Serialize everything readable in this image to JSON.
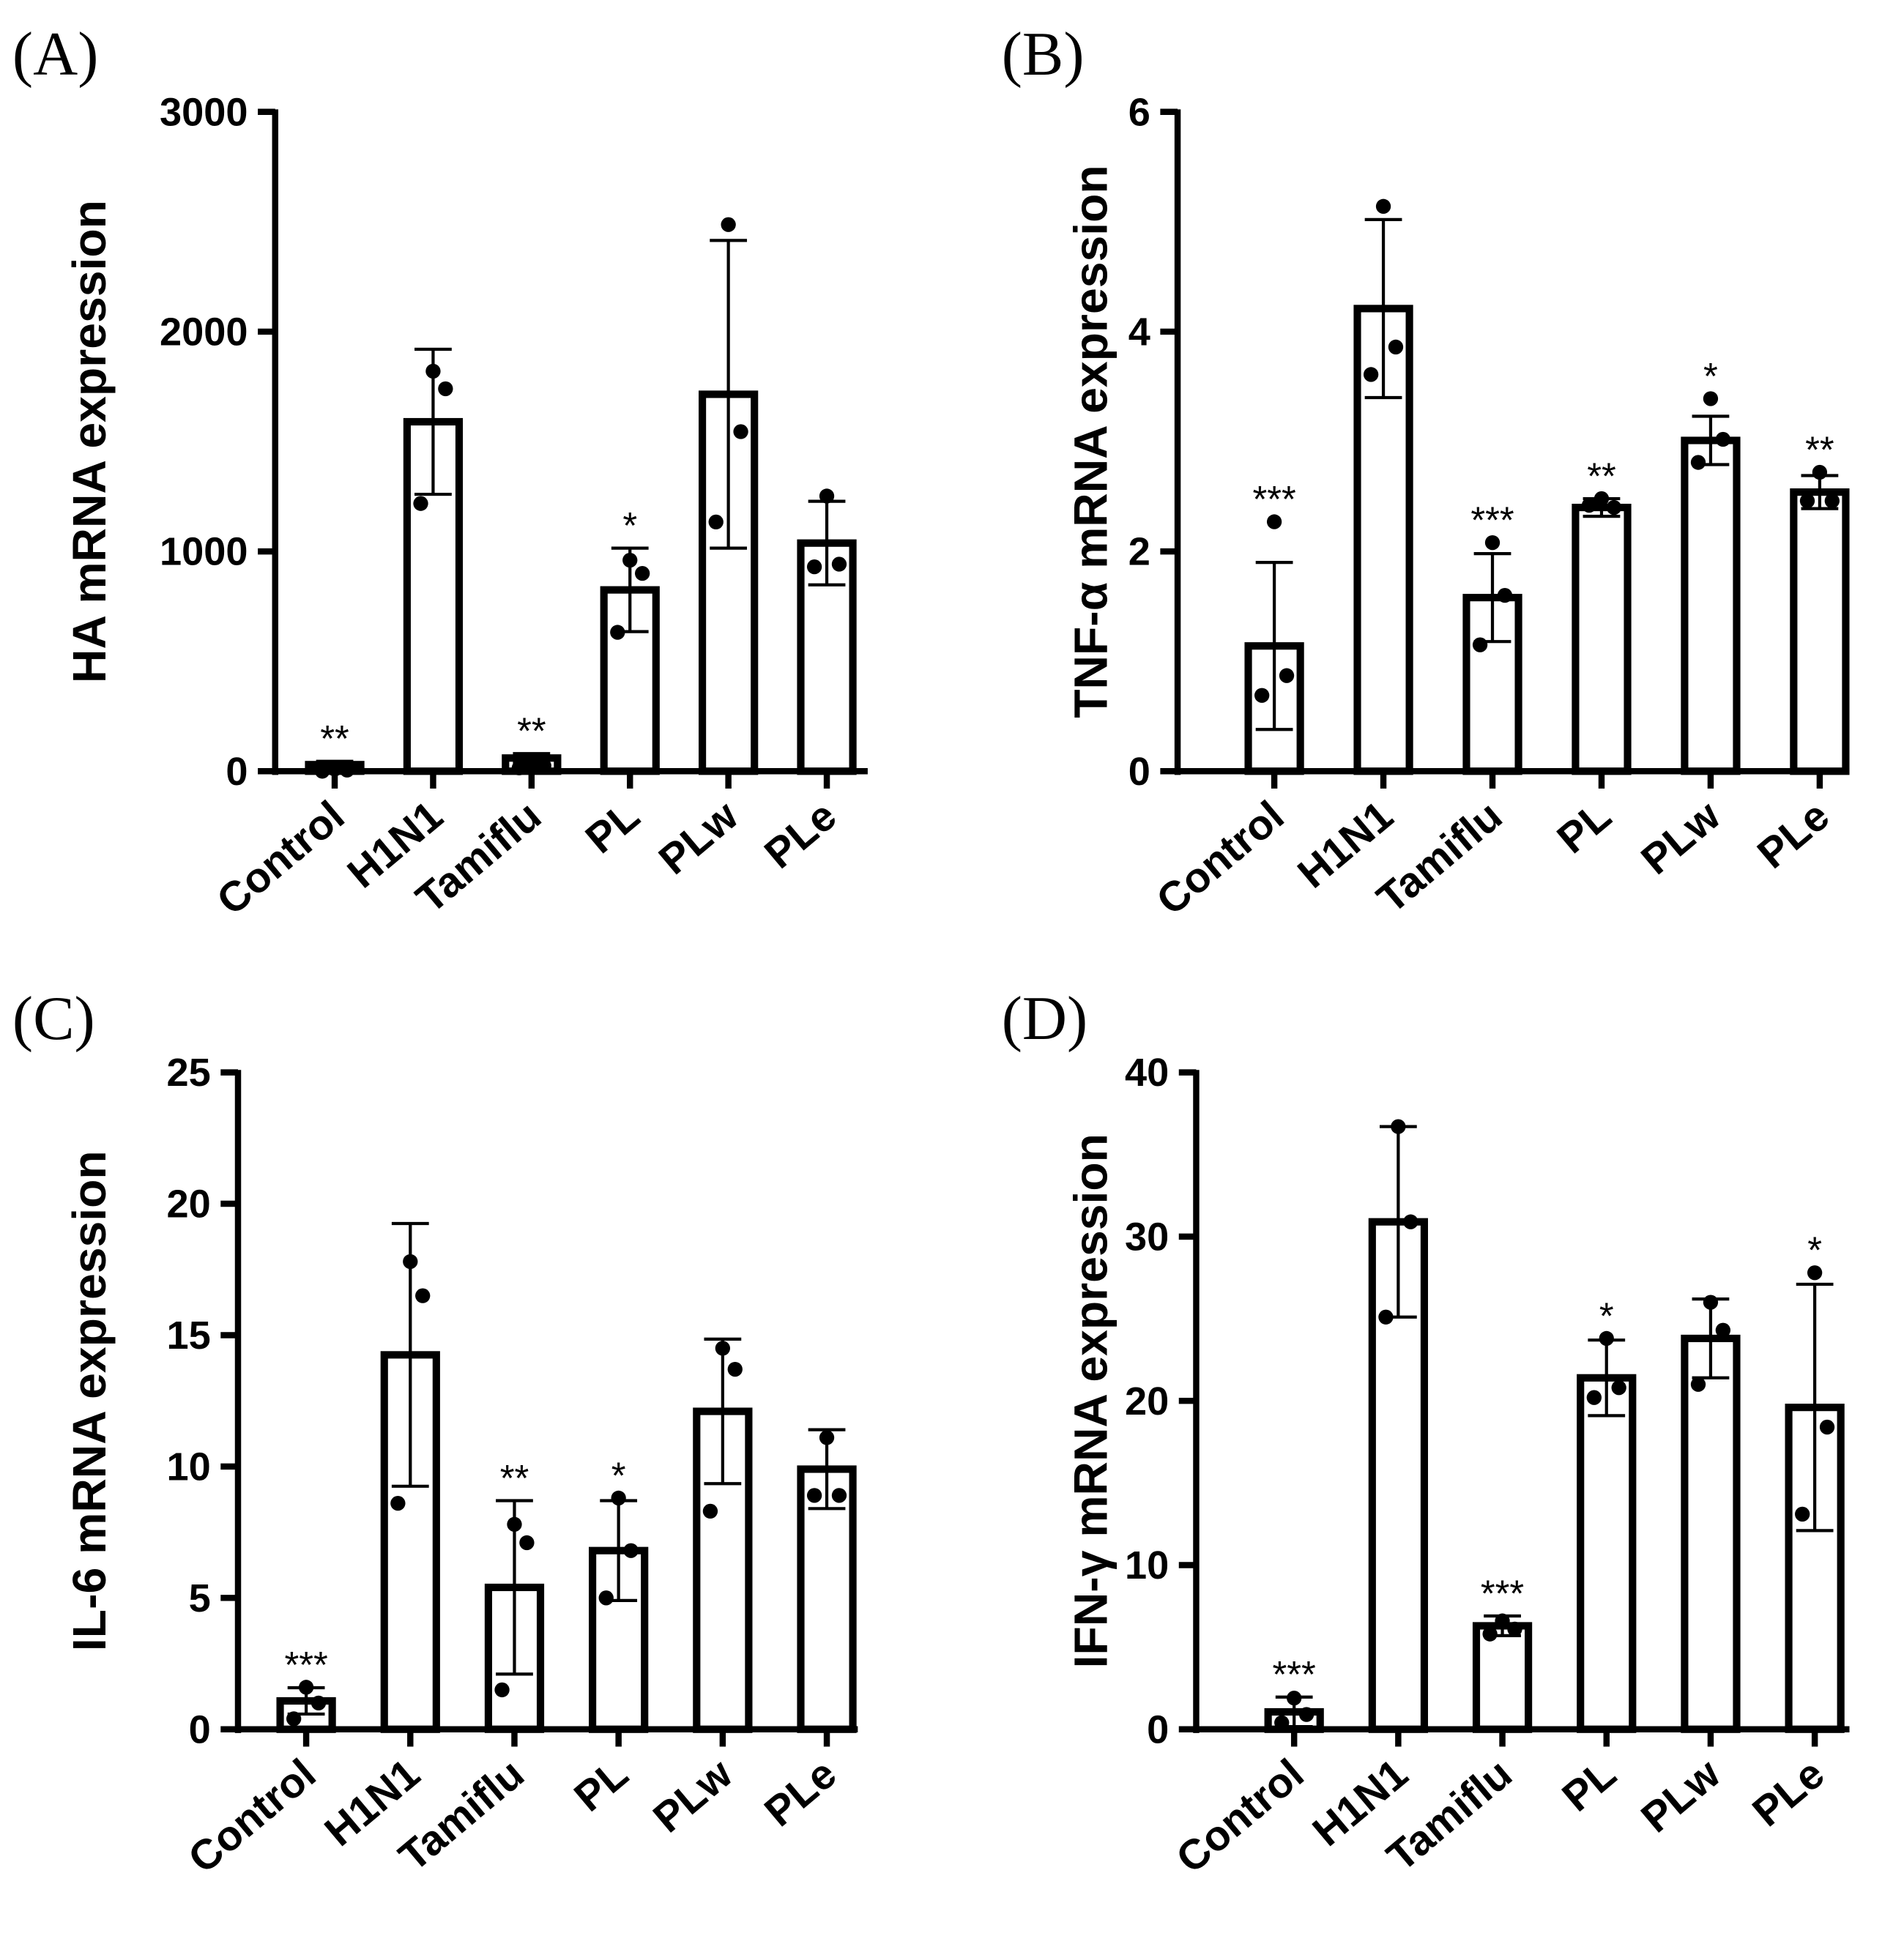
{
  "chart_data": [
    {
      "type": "bar",
      "panel": "(A)",
      "ylabel": "HA mRNA expression",
      "categories": [
        "Control",
        "H1N1",
        "Tamiflu",
        "PL",
        "PLw",
        "PLe"
      ],
      "values": [
        30,
        1590,
        60,
        825,
        1715,
        1038
      ],
      "errors": [
        15,
        330,
        20,
        190,
        700,
        190
      ],
      "points": [
        [
          10,
          5,
          0
        ],
        [
          1820,
          1740,
          1218
        ],
        [
          40,
          25,
          15
        ],
        [
          960,
          900,
          632
        ],
        [
          2487,
          1545,
          1134
        ],
        [
          1252,
          942,
          930
        ]
      ],
      "annotations": [
        "**",
        null,
        "**",
        "*",
        null,
        null
      ],
      "ylim": [
        0,
        3000
      ],
      "yticks": [
        0,
        1000,
        2000,
        3000
      ],
      "color": "#000000"
    },
    {
      "type": "bar",
      "panel": "(B)",
      "ylabel": "TNF-α mRNA expression",
      "categories": [
        "Control",
        "H1N1",
        "Tamiflu",
        "PL",
        "PLw",
        "PLe"
      ],
      "values": [
        1.14,
        4.21,
        1.58,
        2.4,
        3.01,
        2.54
      ],
      "errors": [
        0.76,
        0.81,
        0.4,
        0.08,
        0.22,
        0.15
      ],
      "points": [
        [
          2.27,
          0.87,
          0.69
        ],
        [
          5.14,
          3.86,
          3.61
        ],
        [
          2.08,
          1.6,
          1.15
        ],
        [
          2.48,
          2.4,
          2.42
        ],
        [
          3.39,
          3.02,
          2.81
        ],
        [
          2.72,
          2.46,
          2.46
        ]
      ],
      "annotations": [
        "***",
        null,
        "***",
        "**",
        "*",
        "**"
      ],
      "ylim": [
        0,
        6
      ],
      "yticks": [
        0,
        2,
        4,
        6
      ],
      "color": "#000000"
    },
    {
      "type": "bar",
      "panel": "(C)",
      "ylabel": "IL-6 mRNA expression",
      "categories": [
        "Control",
        "H1N1",
        "Tamiflu",
        "PL",
        "PLw",
        "PLe"
      ],
      "values": [
        1.08,
        14.25,
        5.4,
        6.8,
        12.1,
        9.9
      ],
      "errors": [
        0.5,
        5.0,
        3.3,
        1.9,
        2.75,
        1.5
      ],
      "points": [
        [
          1.6,
          1.0,
          0.4
        ],
        [
          17.8,
          16.5,
          8.6
        ],
        [
          7.8,
          7.1,
          1.5
        ],
        [
          8.8,
          6.8,
          5.0
        ],
        [
          14.5,
          13.7,
          8.3
        ],
        [
          11.1,
          8.9,
          8.9
        ]
      ],
      "annotations": [
        "***",
        null,
        "**",
        "*",
        null,
        null
      ],
      "ylim": [
        0,
        25
      ],
      "yticks": [
        0,
        5,
        10,
        15,
        20,
        25
      ],
      "color": "#000000"
    },
    {
      "type": "bar",
      "panel": "(D)",
      "ylabel": "IFN-γ mRNA expression",
      "categories": [
        "Control",
        "H1N1",
        "Tamiflu",
        "PL",
        "PLw",
        "PLe"
      ],
      "values": [
        1.06,
        30.9,
        6.3,
        21.4,
        23.8,
        19.6
      ],
      "errors": [
        0.9,
        5.8,
        0.6,
        2.3,
        2.4,
        7.5
      ],
      "points": [
        [
          1.9,
          0.9,
          0.4
        ],
        [
          36.7,
          30.9,
          25.1
        ],
        [
          6.6,
          6.1,
          5.8
        ],
        [
          23.8,
          20.8,
          20.2
        ],
        [
          26.0,
          24.3,
          21.0
        ],
        [
          27.8,
          18.4,
          13.1
        ]
      ],
      "annotations": [
        "***",
        null,
        "***",
        "*",
        null,
        "*"
      ],
      "ylim": [
        0,
        40
      ],
      "yticks": [
        0,
        10,
        20,
        30,
        40
      ],
      "color": "#000000"
    }
  ]
}
